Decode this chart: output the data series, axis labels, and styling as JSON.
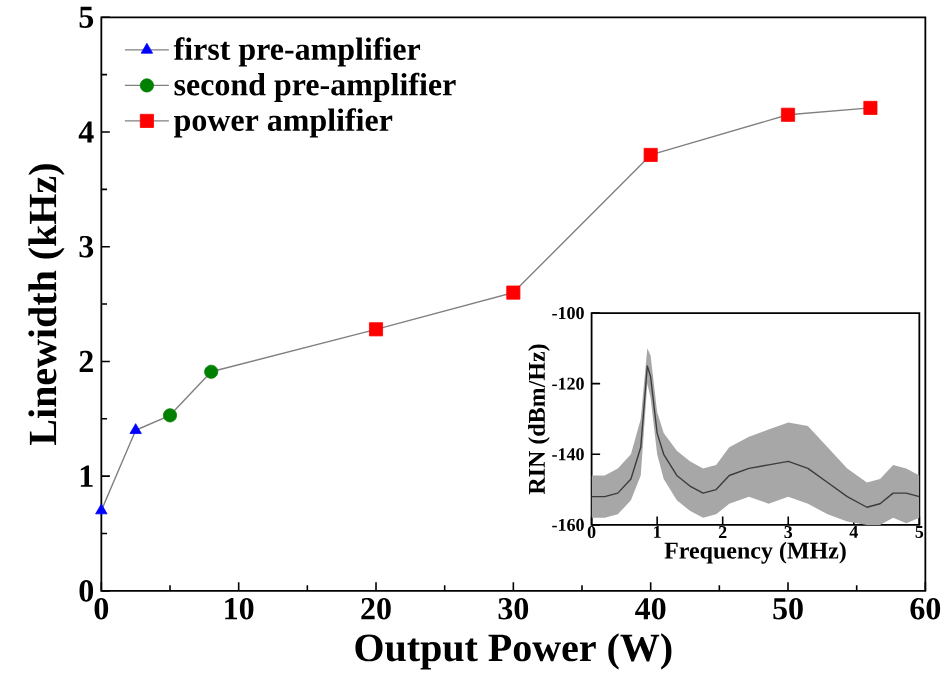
{
  "chart_data": [
    {
      "type": "line",
      "xlabel": "Output Power (W)",
      "ylabel": "Linewidth (kHz)",
      "xlim": [
        0,
        60
      ],
      "xticks": [
        0,
        10,
        20,
        30,
        40,
        50,
        60
      ],
      "ylim": [
        0,
        5
      ],
      "yticks": [
        0,
        1,
        2,
        3,
        4,
        5
      ],
      "legend": "top left",
      "series": [
        {
          "type": "line",
          "color": "#808080",
          "x": [
            0,
            2.5,
            5,
            8,
            20,
            30,
            40,
            50,
            56
          ],
          "values": [
            0.7,
            1.4,
            1.53,
            1.91,
            2.28,
            2.6,
            3.8,
            4.15,
            4.21
          ]
        },
        {
          "type": "scatter",
          "name": "first pre-amplifier",
          "color": "#0000ff",
          "marker": "triangle",
          "x": [
            0,
            2.5
          ],
          "values": [
            0.7,
            1.4
          ]
        },
        {
          "type": "scatter",
          "name": "second pre-amplifier",
          "color": "#008000",
          "marker": "circle",
          "x": [
            5,
            8
          ],
          "values": [
            1.53,
            1.91
          ]
        },
        {
          "type": "scatter",
          "name": "power amplifier",
          "color": "#ff0000",
          "marker": "square",
          "x": [
            20,
            30,
            40,
            50,
            56
          ],
          "values": [
            2.28,
            2.6,
            3.8,
            4.15,
            4.21
          ]
        }
      ]
    },
    {
      "type": "line",
      "xlabel": "Frequency (MHz)",
      "ylabel": "RIN (dBm/Hz)",
      "xlim": [
        0,
        5
      ],
      "xticks": [
        0,
        1,
        2,
        3,
        4,
        5
      ],
      "ylim": [
        -160,
        -100
      ],
      "yticks": [
        -160,
        -140,
        -120,
        -100
      ],
      "series": [
        {
          "color": "#3c3c3c",
          "x": [
            0,
            0.2,
            0.4,
            0.6,
            0.75,
            0.85,
            0.9,
            1.0,
            1.1,
            1.3,
            1.5,
            1.7,
            1.9,
            2.1,
            2.4,
            2.7,
            3.0,
            3.3,
            3.6,
            3.9,
            4.2,
            4.4,
            4.6,
            4.8,
            5.0
          ],
          "values": [
            -152,
            -152,
            -151,
            -147,
            -138,
            -115,
            -118,
            -134,
            -140,
            -146,
            -149,
            -151,
            -150,
            -146,
            -144,
            -143,
            -142,
            -144,
            -148,
            -152,
            -155,
            -154,
            -151,
            -151,
            -152
          ],
          "lower": [
            -158,
            -158,
            -157,
            -153,
            -146,
            -120,
            -124,
            -140,
            -147,
            -153,
            -156,
            -158,
            -157,
            -154,
            -152,
            -154,
            -152,
            -154,
            -157,
            -159,
            -160,
            -160,
            -158,
            -159.5,
            -158
          ],
          "upper": [
            -146,
            -146,
            -144,
            -140,
            -130,
            -110,
            -112,
            -128,
            -134,
            -139,
            -142,
            -144,
            -143,
            -138,
            -135,
            -133,
            -131,
            -132,
            -138,
            -144,
            -148,
            -147,
            -143,
            -144,
            -146
          ]
        }
      ]
    }
  ]
}
